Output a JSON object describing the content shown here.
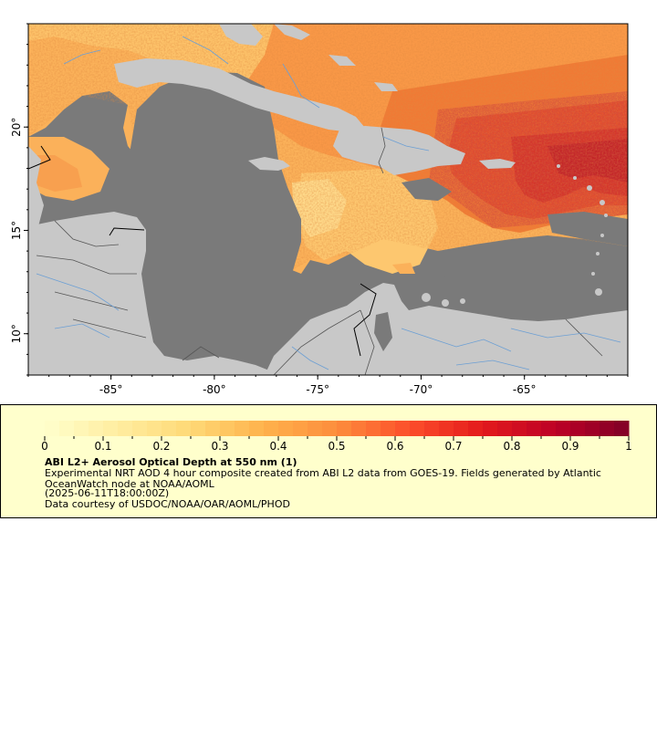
{
  "map": {
    "lon_range": [
      -89,
      -60
    ],
    "lat_range": [
      8,
      25
    ],
    "x_ticks": [
      {
        "label": "-85°",
        "lon": -85
      },
      {
        "label": "-80°",
        "lon": -80
      },
      {
        "label": "-75°",
        "lon": -75
      },
      {
        "label": "-70°",
        "lon": -70
      },
      {
        "label": "-65°",
        "lon": -65
      }
    ],
    "y_ticks": [
      {
        "label": "10°",
        "lat": 10
      },
      {
        "label": "15°",
        "lat": 15
      },
      {
        "label": "20°",
        "lat": 20
      }
    ],
    "colors": {
      "ocean_no_data": "#7a7a7a",
      "land": "#c8c8c8",
      "rivers": "#6c9fd4",
      "borders": "#555555"
    }
  },
  "legend": {
    "title": "ABI L2+ Aerosol Optical Depth at 550 nm (1)",
    "description": "Experimental NRT AOD 4 hour composite created from ABI L2 data from GOES-19. Fields generated by Atlantic OceanWatch node at NOAA/AOML",
    "timestamp": "(2025-06-11T18:00:00Z)",
    "credit": "Data courtesy of USDOC/NOAA/OAR/AOML/PHOD",
    "colorbar_min": 0,
    "colorbar_max": 1,
    "colorbar_ticks": [
      "0",
      "0.1",
      "0.2",
      "0.3",
      "0.4",
      "0.5",
      "0.6",
      "0.7",
      "0.8",
      "0.9",
      "1"
    ],
    "colorbar_stops": [
      "#ffffcc",
      "#ffeda0",
      "#fed976",
      "#feb24c",
      "#fd8d3c",
      "#fc4e2a",
      "#e31a1c",
      "#bd0026",
      "#800026"
    ],
    "background": "#ffffcc"
  }
}
